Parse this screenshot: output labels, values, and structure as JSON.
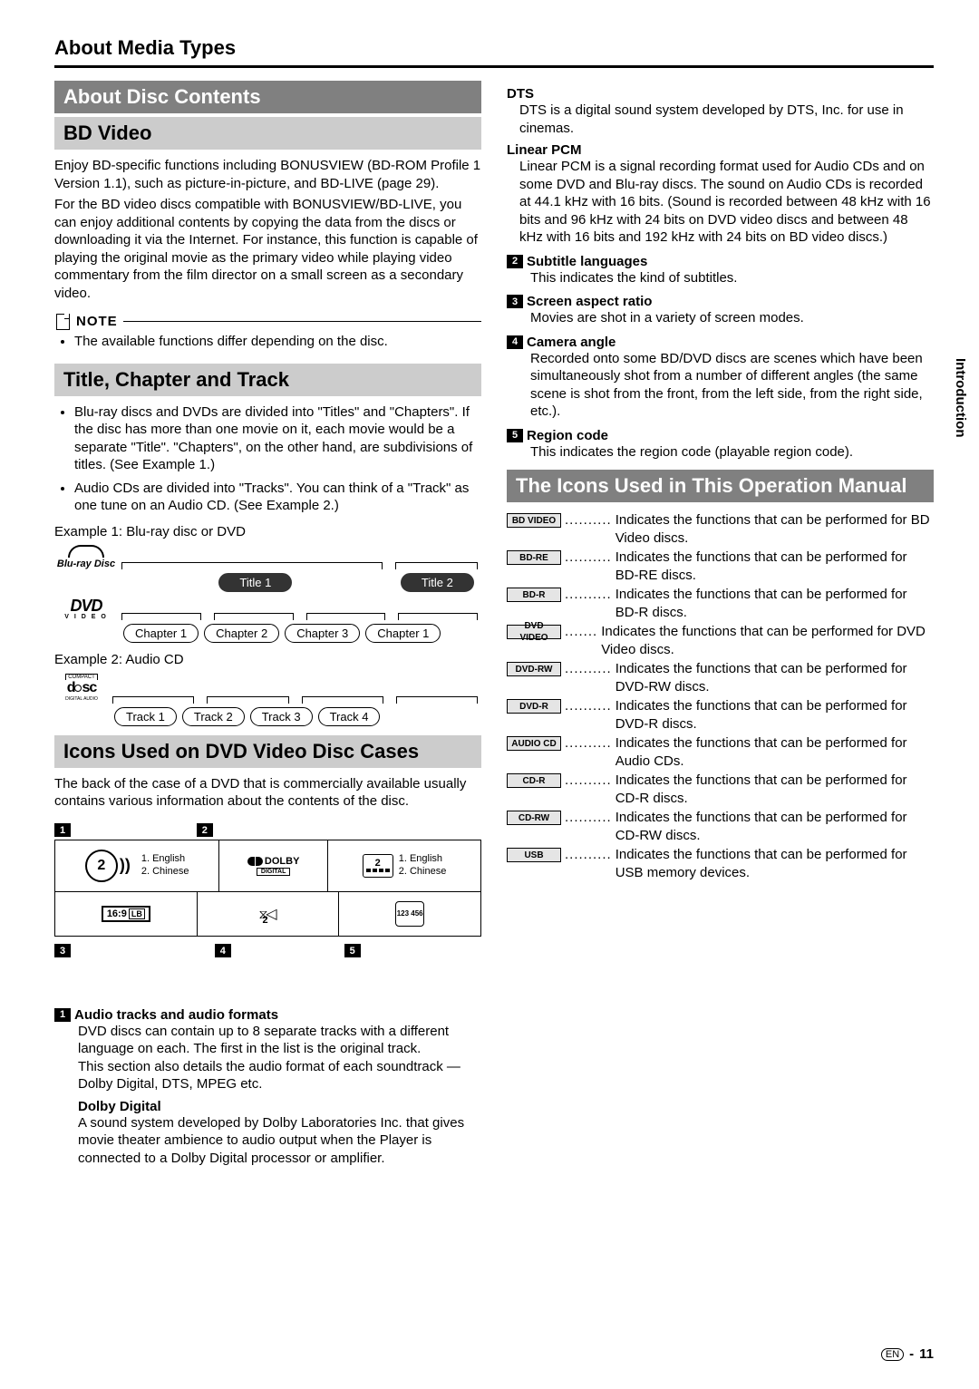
{
  "page_title": "About Media Types",
  "side_tab": "Introduction",
  "page_number": "11",
  "lang_code": "EN",
  "left": {
    "sec_about_disc": "About Disc Contents",
    "sec_bd_video": "BD Video",
    "bd_p1": "Enjoy BD-specific functions including BONUSVIEW (BD-ROM Profile 1 Version 1.1), such as picture-in-picture, and BD-LIVE (page 29).",
    "bd_p2": "For the BD video discs compatible with BONUSVIEW/BD-LIVE, you can enjoy additional contents by copying the data from the discs or downloading it via the Internet. For instance, this function is capable of playing the original movie as the primary video while playing video commentary from the film director on a small screen as a secondary video.",
    "note_label": "NOTE",
    "note_b1": "The available functions differ depending on the disc.",
    "sec_title_chapter": "Title, Chapter and Track",
    "tct_b1": "Blu-ray discs and DVDs are divided into \"Titles\" and \"Chapters\". If the disc has more than one movie on it, each movie would be a separate \"Title\". \"Chapters\", on the other hand, are subdivisions of titles. (See Example 1.)",
    "tct_b2": "Audio CDs are divided into \"Tracks\". You can think of a \"Track\" as one tune on an Audio CD. (See Example 2.)",
    "ex1_label": "Example 1: Blu-ray disc or DVD",
    "ex2_label": "Example 2: Audio CD",
    "title1": "Title 1",
    "title2": "Title 2",
    "ch1": "Chapter 1",
    "ch2": "Chapter 2",
    "ch3": "Chapter 3",
    "ch4": "Chapter 1",
    "tr1": "Track 1",
    "tr2": "Track 2",
    "tr3": "Track 3",
    "tr4": "Track 4",
    "logo_bluray": "Blu-ray Disc",
    "logo_dvd": "DVD",
    "logo_dvd_sub": "V I D E O",
    "logo_cd_top": "COMPACT",
    "logo_cd_mid": "disc",
    "logo_cd_bot": "DIGITAL AUDIO",
    "sec_icons_dvd": "Icons Used on DVD Video Disc Cases",
    "icons_intro": "The back of the case of a DVD that is commercially available usually contains various information about the contents of the disc.",
    "cell1_lang1": "1. English",
    "cell1_lang2": "2. Chinese",
    "cell2_lang1": "1. English",
    "cell2_lang2": "2. Chinese",
    "audio_num": "2",
    "dolby_brand": "DOLBY",
    "dolby_dig": "DIGITAL",
    "sub_num": "2",
    "aspect": "16:9",
    "aspect_lb": "LB",
    "camera_num": "2",
    "region_nums": "123\n456",
    "def1_head": "Audio tracks and audio formats",
    "def1_b1": "DVD discs can contain up to 8 separate tracks with a different language on each. The first in the list is the original track.",
    "def1_b2": "This section also details the audio format of each soundtrack — Dolby Digital, DTS, MPEG etc.",
    "dolby_head": "Dolby Digital",
    "dolby_body": "A sound system developed by Dolby Laboratories Inc. that gives movie theater ambience to audio output when the Player is connected to a Dolby Digital processor or amplifier."
  },
  "right": {
    "dts_head": "DTS",
    "dts_body": "DTS is a digital sound system developed by DTS, Inc. for use in cinemas.",
    "lpcm_head": "Linear PCM",
    "lpcm_body": "Linear PCM is a signal recording format used for Audio CDs and on some DVD and Blu-ray discs. The sound on Audio CDs is recorded at 44.1 kHz with 16 bits. (Sound is recorded between 48 kHz with 16 bits and 96 kHz with 24 bits on DVD video discs and between 48 kHz with 16 bits and 192 kHz with 24 bits on BD video discs.)",
    "d2_head": "Subtitle languages",
    "d2_body": "This indicates the kind of subtitles.",
    "d3_head": "Screen aspect ratio",
    "d3_body": "Movies are shot in a variety of screen modes.",
    "d4_head": "Camera angle",
    "d4_body": "Recorded onto some BD/DVD discs are scenes which have been simultaneously shot from a number of different angles (the same scene is shot from the front, from the left side, from the right side, etc.).",
    "d5_head": "Region code",
    "d5_body": "This indicates the region code (playable region code).",
    "sec_manual_icons": "The Icons Used in This Operation Manual",
    "icons": [
      {
        "tag": "BD VIDEO",
        "desc": "Indicates the functions that can be performed for BD Video discs."
      },
      {
        "tag": "BD-RE",
        "desc": "Indicates the functions that can be performed for BD-RE discs."
      },
      {
        "tag": "BD-R",
        "desc": "Indicates the functions that can be performed for BD-R discs."
      },
      {
        "tag": "DVD VIDEO",
        "desc": "Indicates the functions that can be performed for DVD Video discs."
      },
      {
        "tag": "DVD-RW",
        "desc": "Indicates the functions that can be performed for DVD-RW discs."
      },
      {
        "tag": "DVD-R",
        "desc": "Indicates the functions that can be performed for DVD-R discs."
      },
      {
        "tag": "AUDIO CD",
        "desc": "Indicates the functions that can be performed for Audio CDs."
      },
      {
        "tag": "CD-R",
        "desc": "Indicates the functions that can be performed for CD-R discs."
      },
      {
        "tag": "CD-RW",
        "desc": "Indicates the functions that can be performed for CD-RW discs."
      },
      {
        "tag": "USB",
        "desc": "Indicates the functions that can be performed for USB memory devices."
      }
    ],
    "icon_dot_counts": [
      10,
      10,
      10,
      7,
      10,
      10,
      10,
      10,
      10,
      10
    ]
  }
}
